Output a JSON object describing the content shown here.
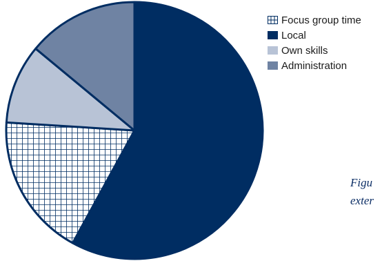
{
  "chart_data": {
    "type": "pie",
    "series": [
      {
        "name": "Local",
        "value": 58,
        "color": "#002d62",
        "pattern": "solid"
      },
      {
        "name": "Focus group time",
        "value": 18,
        "color": "#002d62",
        "pattern": "grid"
      },
      {
        "name": "Own skills",
        "value": 10,
        "color": "#b8c3d6",
        "pattern": "solid"
      },
      {
        "name": "Administration",
        "value": 14,
        "color": "#6f83a3",
        "pattern": "solid"
      }
    ],
    "legend": [
      {
        "label": "Focus group time",
        "pattern": "grid",
        "color": "#002d62"
      },
      {
        "label": "Local",
        "pattern": "solid",
        "color": "#002d62"
      },
      {
        "label": "Own skills",
        "pattern": "solid",
        "color": "#b8c3d6"
      },
      {
        "label": "Administration",
        "pattern": "solid",
        "color": "#6f83a3"
      }
    ],
    "legend_position": "top-right",
    "start_angle": "12 o'clock, clockwise"
  },
  "caption": {
    "line1": "Figu",
    "line2": "exter"
  }
}
